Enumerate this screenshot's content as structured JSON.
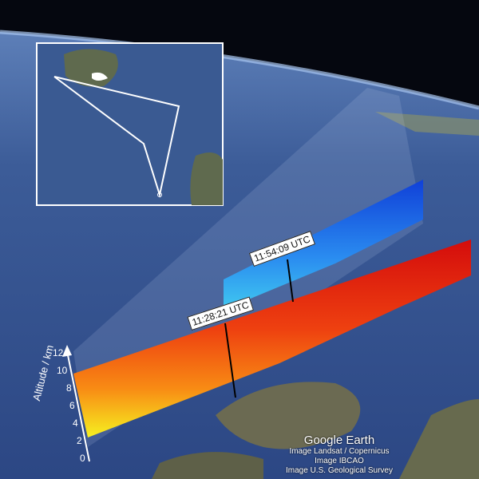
{
  "labels": {
    "later_time": "11:54:09 UTC",
    "earlier_time": "11:28:21 UTC"
  },
  "axis": {
    "title": "Altitude / km",
    "ticks": [
      "0",
      "2",
      "4",
      "6",
      "8",
      "10",
      "12"
    ]
  },
  "attribution": {
    "logo": "Google Earth",
    "lines": [
      "Image Landsat / Copernicus",
      "Image IBCAO",
      "Image U.S. Geological Survey"
    ]
  },
  "colors": {
    "ocean": "#2f4a86",
    "space": "#05070f",
    "high_signal": "#e01010",
    "low_signal": "#f0f020",
    "blue_curtain": "#1e6ee8"
  }
}
